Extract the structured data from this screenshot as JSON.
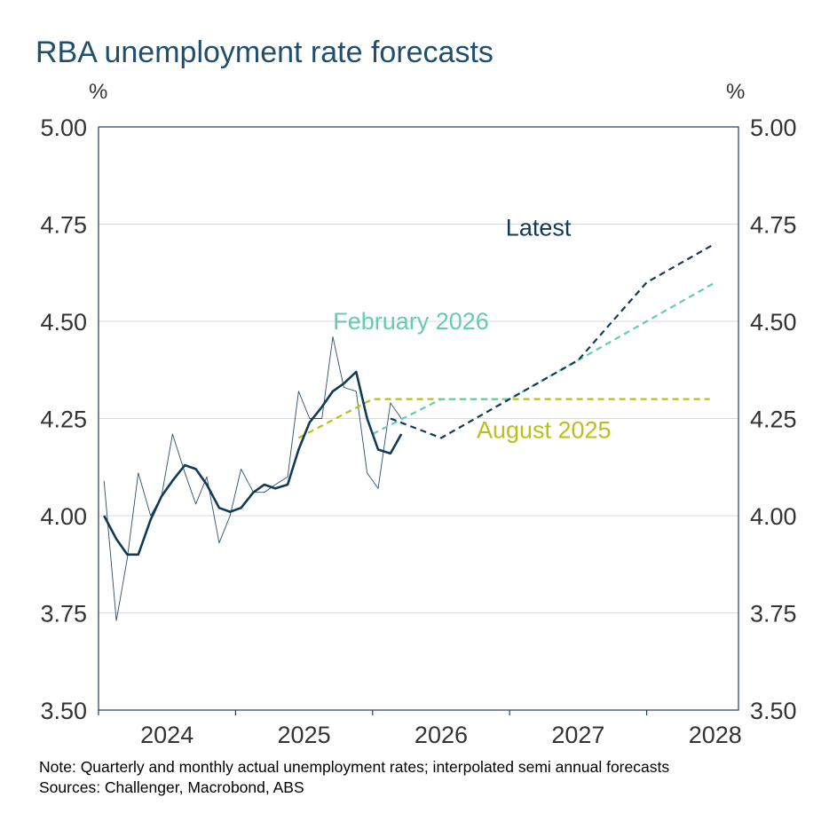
{
  "title": "RBA unemployment rate forecasts",
  "unit_left": "%",
  "unit_right": "%",
  "note": "Note: Quarterly and monthly actual unemployment rates; interpolated semi annual forecasts",
  "sources": "Sources: Challenger, Macrobond, ABS",
  "chart_data": {
    "type": "line",
    "title": "RBA unemployment rate forecasts",
    "ylabel": "%",
    "ylim": [
      3.5,
      5.0
    ],
    "yticks": [
      "5.00",
      "4.75",
      "4.50",
      "4.25",
      "4.00",
      "3.75",
      "3.50"
    ],
    "xlim": [
      2023.5,
      2028.17
    ],
    "xticks": [
      2024,
      2025,
      2026,
      2027,
      2028
    ],
    "xtick_labels": [
      "2024",
      "2025",
      "2026",
      "2027",
      "2028"
    ],
    "grid": "horizontal",
    "series": [
      {
        "name": "",
        "style": "thin-solid",
        "color": "#2a4f69",
        "x": [
          2023.54,
          2023.63,
          2023.71,
          2023.79,
          2023.88,
          2023.96,
          2024.04,
          2024.13,
          2024.21,
          2024.29,
          2024.38,
          2024.46,
          2024.54,
          2024.63,
          2024.71,
          2024.79,
          2024.88,
          2024.96,
          2025.04,
          2025.13,
          2025.21,
          2025.29,
          2025.38,
          2025.46,
          2025.54,
          2025.63,
          2025.71
        ],
        "y": [
          4.09,
          3.73,
          3.89,
          4.11,
          4.0,
          4.05,
          4.21,
          4.11,
          4.03,
          4.1,
          3.93,
          4.0,
          4.12,
          4.06,
          4.06,
          4.08,
          4.1,
          4.32,
          4.25,
          4.25,
          4.46,
          4.33,
          4.32,
          4.11,
          4.07,
          4.29,
          4.25
        ]
      },
      {
        "name": "",
        "style": "thick-solid",
        "color": "#103a58",
        "x": [
          2023.54,
          2023.63,
          2023.71,
          2023.79,
          2023.88,
          2023.96,
          2024.04,
          2024.13,
          2024.21,
          2024.29,
          2024.38,
          2024.46,
          2024.54,
          2024.63,
          2024.71,
          2024.79,
          2024.88,
          2024.96,
          2025.04,
          2025.13,
          2025.21,
          2025.29,
          2025.38,
          2025.46,
          2025.54,
          2025.63,
          2025.71
        ],
        "y": [
          4.0,
          3.94,
          3.9,
          3.9,
          3.99,
          4.05,
          4.09,
          4.13,
          4.12,
          4.08,
          4.02,
          4.01,
          4.02,
          4.06,
          4.08,
          4.07,
          4.08,
          4.17,
          4.24,
          4.28,
          4.32,
          4.34,
          4.37,
          4.25,
          4.17,
          4.16,
          4.21
        ]
      },
      {
        "name": "Latest",
        "style": "dashed",
        "color": "#103a58",
        "x": [
          2025.63,
          2026.0,
          2026.5,
          2027.0,
          2027.5,
          2028.0
        ],
        "y": [
          4.25,
          4.2,
          4.3,
          4.4,
          4.6,
          4.7
        ]
      },
      {
        "name": "February 2026",
        "style": "dashed",
        "color": "#63cdb0",
        "x": [
          2025.5,
          2026.0,
          2026.5,
          2027.0,
          2027.5,
          2028.0
        ],
        "y": [
          4.21,
          4.3,
          4.3,
          4.4,
          4.5,
          4.6
        ]
      },
      {
        "name": "August 2025",
        "style": "dashed",
        "color": "#b7c01c",
        "x": [
          2024.96,
          2025.5,
          2026.0,
          2026.5,
          2027.0,
          2027.5,
          2027.96
        ],
        "y": [
          4.2,
          4.3,
          4.3,
          4.3,
          4.3,
          4.3,
          4.3
        ]
      }
    ]
  }
}
